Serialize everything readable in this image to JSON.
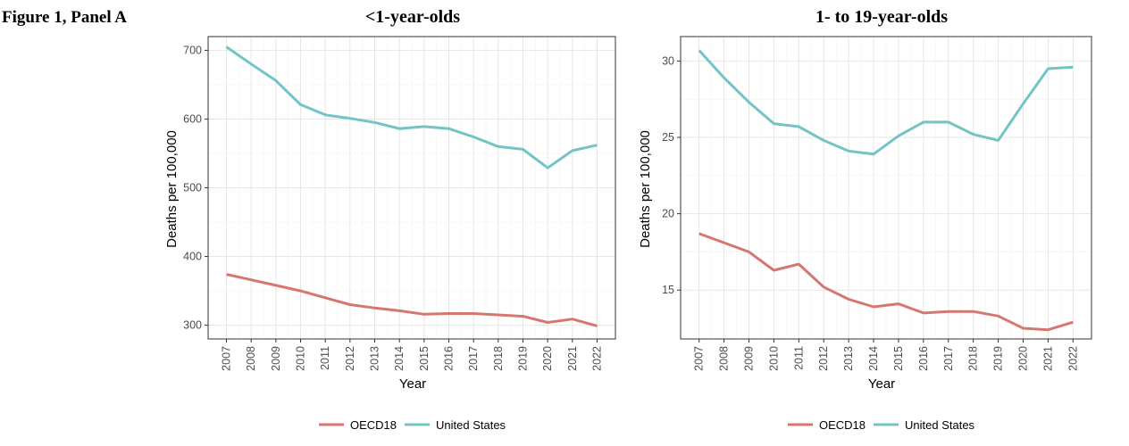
{
  "figure_label": "Figure 1, Panel A",
  "legend": [
    {
      "name": "OECD18",
      "color": "#d6776f"
    },
    {
      "name": "United States",
      "color": "#74c3c5"
    }
  ],
  "chart_data": [
    {
      "type": "line",
      "title": "<1-year-olds",
      "xlabel": "Year",
      "ylabel": "Deaths per 100,000",
      "x": [
        2007,
        2008,
        2009,
        2010,
        2011,
        2012,
        2013,
        2014,
        2015,
        2016,
        2017,
        2018,
        2019,
        2020,
        2021,
        2022
      ],
      "ylim": [
        280,
        720
      ],
      "yticks": [
        300,
        400,
        500,
        600,
        700
      ],
      "series": [
        {
          "name": "OECD18",
          "color": "#d6776f",
          "values": [
            374,
            366,
            358,
            350,
            340,
            330,
            325,
            321,
            316,
            317,
            317,
            315,
            313,
            304,
            309,
            299
          ]
        },
        {
          "name": "United States",
          "color": "#74c3c5",
          "values": [
            705,
            680,
            656,
            621,
            606,
            601,
            595,
            586,
            589,
            586,
            574,
            560,
            556,
            529,
            554,
            562
          ]
        }
      ]
    },
    {
      "type": "line",
      "title": "1- to 19-year-olds",
      "xlabel": "Year",
      "ylabel": "Deaths per 100,000",
      "x": [
        2007,
        2008,
        2009,
        2010,
        2011,
        2012,
        2013,
        2014,
        2015,
        2016,
        2017,
        2018,
        2019,
        2020,
        2021,
        2022
      ],
      "ylim": [
        11.8,
        31.6
      ],
      "yticks": [
        15,
        20,
        25,
        30
      ],
      "series": [
        {
          "name": "OECD18",
          "color": "#d6776f",
          "values": [
            18.7,
            18.1,
            17.5,
            16.3,
            16.7,
            15.2,
            14.4,
            13.9,
            14.1,
            13.5,
            13.6,
            13.6,
            13.3,
            12.5,
            12.4,
            12.9
          ]
        },
        {
          "name": "United States",
          "color": "#74c3c5",
          "values": [
            30.7,
            28.9,
            27.3,
            25.9,
            25.7,
            24.8,
            24.1,
            23.9,
            25.1,
            26.0,
            26.0,
            25.2,
            24.8,
            27.2,
            29.5,
            29.6
          ]
        }
      ]
    }
  ]
}
